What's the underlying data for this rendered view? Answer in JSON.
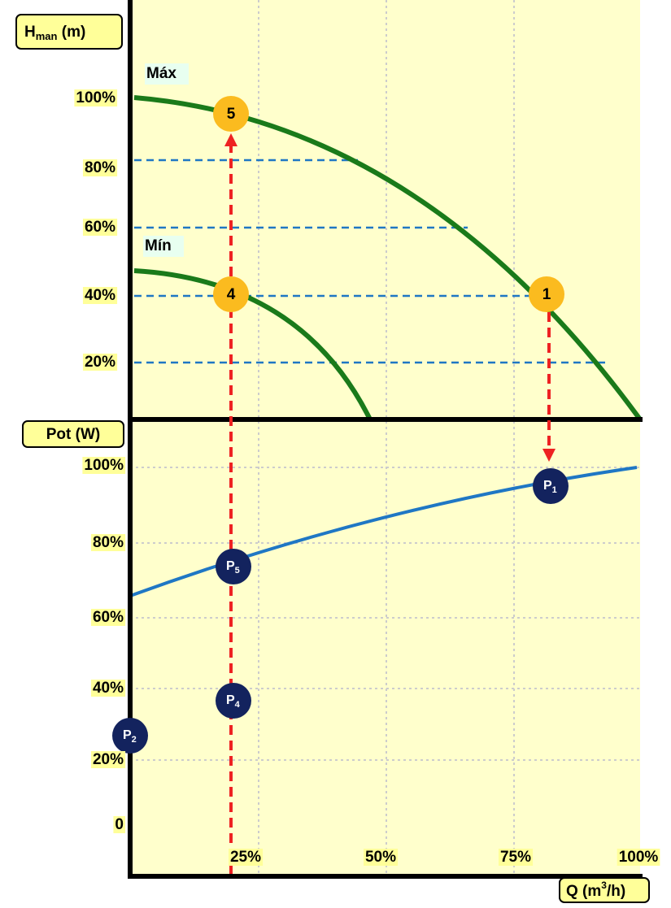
{
  "head_axis": {
    "symbol": "H",
    "subscript": "man",
    "unit": " (m)",
    "ticks": [
      "100%",
      "80%",
      "60%",
      "40%",
      "20%"
    ]
  },
  "power_axis": {
    "label": "Pot (W)",
    "ticks": [
      "100%",
      "80%",
      "60%",
      "40%",
      "20%",
      "0"
    ]
  },
  "flow_axis": {
    "prefix": "Q (m",
    "superscript": "3",
    "suffix": "/h)",
    "ticks": [
      "25%",
      "50%",
      "75%",
      "100%"
    ]
  },
  "curves": {
    "max": "Máx",
    "min": "Mín"
  },
  "points": {
    "p5": "5",
    "p4": "4",
    "p1": "1"
  },
  "power_points": [
    {
      "symbol": "P",
      "subscript": "1"
    },
    {
      "symbol": "P",
      "subscript": "5"
    },
    {
      "symbol": "P",
      "subscript": "4"
    },
    {
      "symbol": "P",
      "subscript": "2"
    }
  ]
}
